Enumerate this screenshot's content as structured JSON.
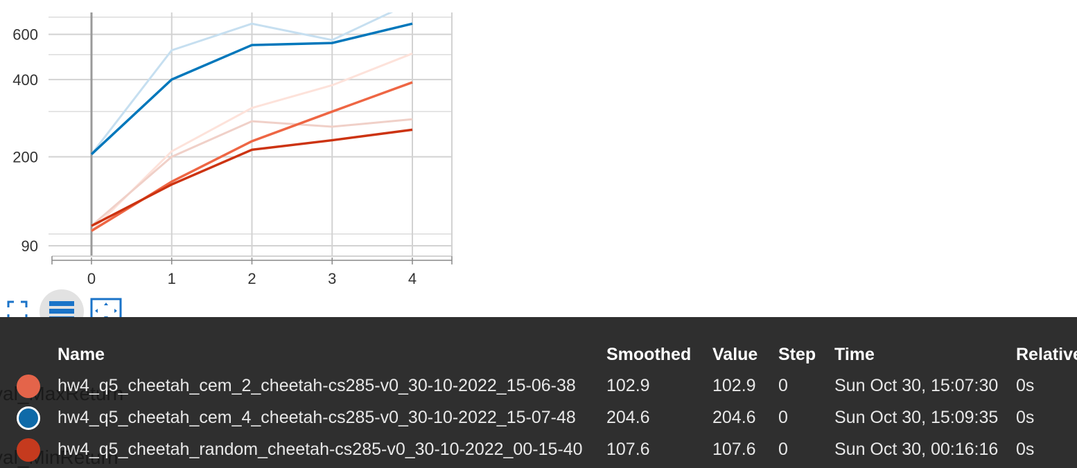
{
  "chart_data": {
    "type": "line",
    "x": [
      0,
      1,
      2,
      3,
      4
    ],
    "xticks": [
      "0",
      "1",
      "2",
      "3",
      "4"
    ],
    "yticks": [
      {
        "label": "90",
        "value": 90
      },
      {
        "label": "200",
        "value": 200
      },
      {
        "label": "400",
        "value": 400
      },
      {
        "label": "600",
        "value": 600
      }
    ],
    "yscale": "log",
    "ylim": [
      82,
      730
    ],
    "xlim": [
      -0.5,
      4.5
    ],
    "grid": true,
    "series": [
      {
        "color": "#0077bb",
        "raw_color": "#c6dff0",
        "smoothed": [
          204.6,
          400,
          545,
          555,
          660
        ],
        "raw": [
          204.6,
          520,
          660,
          570,
          800
        ]
      },
      {
        "color": "#ee6644",
        "raw_color": "#fde2da",
        "smoothed": [
          102.9,
          160,
          230,
          300,
          390
        ],
        "raw": [
          102.9,
          210,
          310,
          380,
          505
        ]
      },
      {
        "color": "#cc3311",
        "raw_color": "#f0d0c8",
        "smoothed": [
          107.6,
          156,
          213,
          232,
          255
        ],
        "raw": [
          107.6,
          200,
          275,
          262,
          280
        ]
      }
    ]
  },
  "toolbar": {
    "fullscreen_icon": "fullscreen-icon",
    "legend_icon": "legend-toggle-icon",
    "fit_icon": "fit-domain-icon"
  },
  "ghost_labels": [
    "val_MaxReturn",
    "val_MinReturn"
  ],
  "table": {
    "headers": {
      "name": "Name",
      "smoothed": "Smoothed",
      "value": "Value",
      "step": "Step",
      "time": "Time",
      "relative": "Relative"
    },
    "rows": [
      {
        "color": "#e4644a",
        "name": "hw4_q5_cheetah_cem_2_cheetah-cs285-v0_30-10-2022_15-06-38",
        "smoothed": "102.9",
        "value": "102.9",
        "step": "0",
        "time": "Sun Oct 30, 15:07:30",
        "relative": "0s"
      },
      {
        "color": "#0f6aa8",
        "name": "hw4_q5_cheetah_cem_4_cheetah-cs285-v0_30-10-2022_15-07-48",
        "smoothed": "204.6",
        "value": "204.6",
        "step": "0",
        "time": "Sun Oct 30, 15:09:35",
        "relative": "0s"
      },
      {
        "color": "#c53a1e",
        "name": "hw4_q5_cheetah_random_cheetah-cs285-v0_30-10-2022_00-15-40",
        "smoothed": "107.6",
        "value": "107.6",
        "step": "0",
        "time": "Sun Oct 30, 00:16:16",
        "relative": "0s"
      }
    ]
  }
}
